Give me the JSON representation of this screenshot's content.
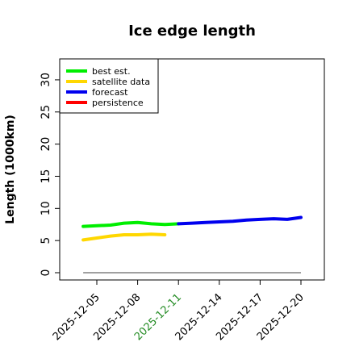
{
  "chart_data": {
    "type": "line",
    "title": "Ice edge length",
    "xlabel": "",
    "ylabel": "Length (1000km)",
    "ylim": [
      0,
      32
    ],
    "yticks": [
      "0",
      "5",
      "10",
      "15",
      "20",
      "25",
      "30"
    ],
    "xlim": [
      "2025-12-03",
      "2025-12-20"
    ],
    "xticks": [
      "2025-12-05",
      "2025-12-08",
      "2025-12-11",
      "2025-12-14",
      "2025-12-17",
      "2025-12-20"
    ],
    "highlight_tick": "2025-12-11",
    "highlight_color": "#228B22",
    "legend_position": "top-left",
    "grid": false,
    "series": [
      {
        "name": "best est.",
        "color": "#00EE00",
        "points": [
          [
            "2025-12-04",
            7.2
          ],
          [
            "2025-12-05",
            7.3
          ],
          [
            "2025-12-06",
            7.4
          ],
          [
            "2025-12-07",
            7.7
          ],
          [
            "2025-12-08",
            7.8
          ],
          [
            "2025-12-09",
            7.6
          ],
          [
            "2025-12-10",
            7.5
          ],
          [
            "2025-12-11",
            7.6
          ]
        ]
      },
      {
        "name": "satellite data",
        "color": "#FFD700",
        "points": [
          [
            "2025-12-04",
            5.1
          ],
          [
            "2025-12-05",
            5.4
          ],
          [
            "2025-12-06",
            5.7
          ],
          [
            "2025-12-07",
            5.9
          ],
          [
            "2025-12-08",
            5.9
          ],
          [
            "2025-12-09",
            6.0
          ],
          [
            "2025-12-10",
            5.9
          ]
        ]
      },
      {
        "name": "forecast",
        "color": "#0000EE",
        "points": [
          [
            "2025-12-11",
            7.6
          ],
          [
            "2025-12-12",
            7.7
          ],
          [
            "2025-12-13",
            7.8
          ],
          [
            "2025-12-14",
            7.9
          ],
          [
            "2025-12-15",
            8.0
          ],
          [
            "2025-12-16",
            8.2
          ],
          [
            "2025-12-17",
            8.3
          ],
          [
            "2025-12-18",
            8.4
          ],
          [
            "2025-12-19",
            8.3
          ],
          [
            "2025-12-20",
            8.6
          ]
        ]
      },
      {
        "name": "persistence",
        "color": "#FF0000",
        "points": []
      }
    ],
    "reference_line": {
      "color": "#808080",
      "y": 0,
      "from": "2025-12-04",
      "to": "2025-12-20"
    }
  }
}
